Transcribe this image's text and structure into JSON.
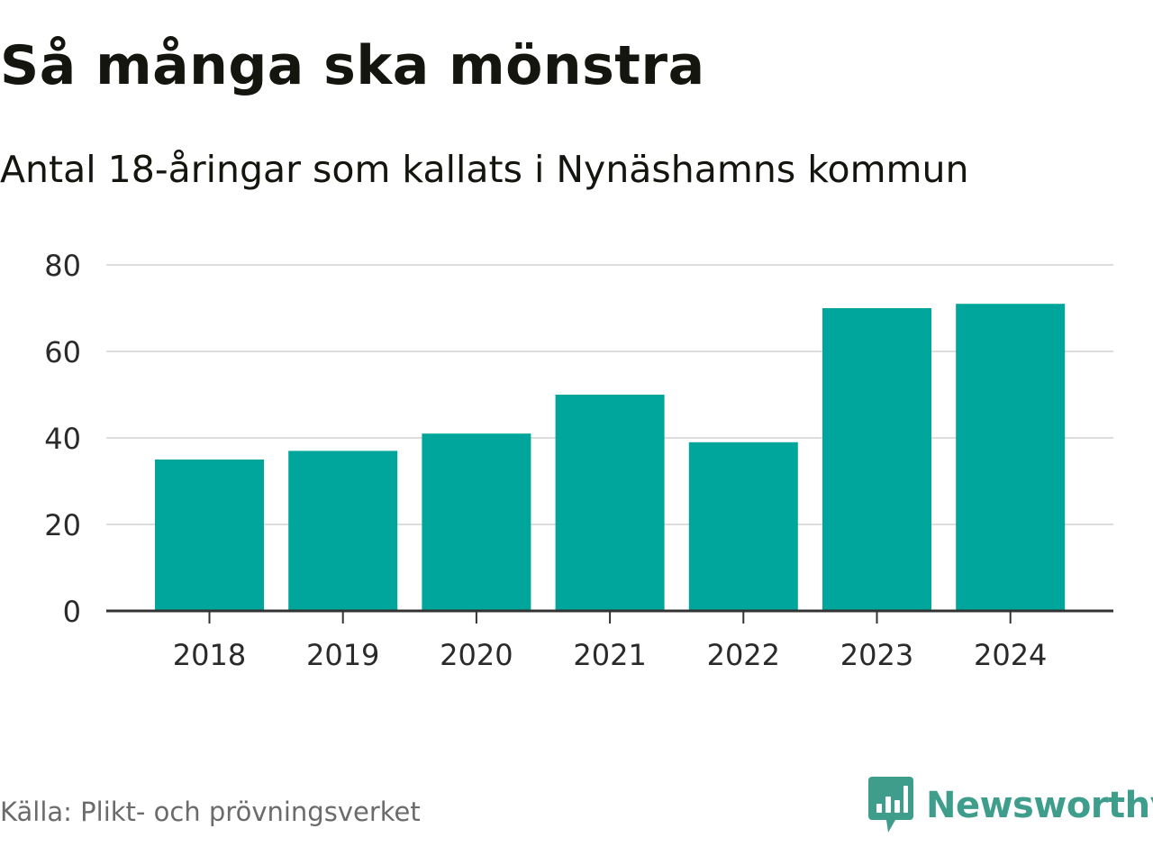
{
  "title": "Så många ska mönstra",
  "subtitle": "Antal 18-åringar som kallats i Nynäshamns kommun",
  "source": "Källa: Plikt- och prövningsverket",
  "brand": {
    "name": "Newsworthy",
    "color": "#3f9d8c",
    "icon": "newsworthy-logo-icon"
  },
  "colors": {
    "bar": "#00a59b",
    "grid": "#dddddd",
    "axis": "#333333"
  },
  "chart_data": {
    "type": "bar",
    "title": "Så många ska mönstra",
    "subtitle": "Antal 18-åringar som kallats i Nynäshamns kommun",
    "categories": [
      "2018",
      "2019",
      "2020",
      "2021",
      "2022",
      "2023",
      "2024"
    ],
    "values": [
      35,
      37,
      41,
      50,
      39,
      70,
      71
    ],
    "xlabel": "",
    "ylabel": "",
    "ylim": [
      0,
      80
    ],
    "yticks": [
      0,
      20,
      40,
      60,
      80
    ],
    "ytick_labels": [
      "0",
      "20",
      "40",
      "60",
      "80"
    ],
    "grid": true,
    "legend": "none"
  }
}
